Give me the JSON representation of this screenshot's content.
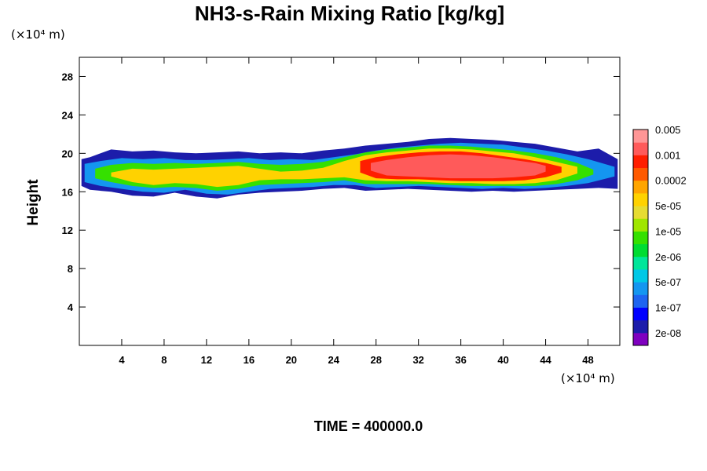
{
  "chart_data": {
    "type": "contour",
    "title": "NH3-s-Rain Mixing Ratio [kg/kg]",
    "ylabel": "Height",
    "xlabel": "",
    "y_unit": "(×10⁴ m)",
    "x_unit": "(×10⁴ m)",
    "xlim": [
      0,
      51
    ],
    "ylim": [
      0,
      30
    ],
    "x_ticks": [
      4,
      8,
      12,
      16,
      20,
      24,
      28,
      32,
      36,
      40,
      44,
      48
    ],
    "y_ticks": [
      4,
      8,
      12,
      16,
      20,
      24,
      28
    ],
    "levels": [
      "2e-08",
      "1e-07",
      "5e-07",
      "2e-06",
      "1e-05",
      "5e-05",
      "0.0002",
      "0.001",
      "0.005"
    ],
    "colors": [
      "#7f00bf",
      "#1c1caa",
      "#0000ff",
      "#1e64f0",
      "#1496f0",
      "#00c8e6",
      "#00e69a",
      "#00dc32",
      "#35e000",
      "#a0e600",
      "#e6dc32",
      "#ffd200",
      "#ffa500",
      "#ff5a00",
      "#ff1e00",
      "#ff5a5a",
      "#ff9696"
    ],
    "bands": [
      {
        "level": "2e-08",
        "x": [
          0.2,
          1,
          3,
          5,
          7,
          9,
          11,
          13,
          15,
          17,
          19,
          21,
          23,
          25,
          27,
          29,
          31,
          33,
          35,
          37,
          39,
          41,
          43,
          45,
          47,
          49,
          50.8
        ],
        "top": [
          19.4,
          19.6,
          20.4,
          20.2,
          20.3,
          20.1,
          20.0,
          20.1,
          20.2,
          20.0,
          20.1,
          20.0,
          20.3,
          20.5,
          20.8,
          21.0,
          21.2,
          21.5,
          21.6,
          21.5,
          21.4,
          21.2,
          21.0,
          20.6,
          20.2,
          20.5,
          19.4
        ],
        "bottom": [
          16.6,
          16.2,
          16.0,
          15.6,
          15.5,
          15.9,
          15.5,
          15.3,
          15.7,
          15.9,
          16.0,
          16.1,
          16.3,
          16.4,
          16.1,
          16.2,
          16.3,
          16.2,
          16.1,
          16.0,
          16.1,
          16.0,
          16.1,
          16.2,
          16.3,
          16.4,
          16.3
        ]
      },
      {
        "level": "5e-07",
        "x": [
          0.5,
          2,
          4,
          6,
          8,
          10,
          12,
          14,
          16,
          18,
          20,
          22,
          24,
          26,
          28,
          30,
          32,
          34,
          36,
          38,
          40,
          42,
          44,
          46,
          48,
          50.5
        ],
        "top": [
          18.9,
          19.2,
          19.5,
          19.4,
          19.5,
          19.3,
          19.3,
          19.4,
          19.5,
          19.3,
          19.4,
          19.3,
          19.6,
          19.9,
          20.3,
          20.6,
          20.8,
          21.0,
          21.1,
          21.0,
          20.9,
          20.6,
          20.3,
          19.9,
          19.4,
          18.6
        ],
        "bottom": [
          17.0,
          16.6,
          16.3,
          16.0,
          15.9,
          16.2,
          15.8,
          15.7,
          16.0,
          16.3,
          16.4,
          16.5,
          16.7,
          16.7,
          16.4,
          16.5,
          16.6,
          16.5,
          16.4,
          16.3,
          16.4,
          16.3,
          16.4,
          16.6,
          16.9,
          17.6
        ]
      },
      {
        "level": "1e-05",
        "x": [
          1.5,
          3,
          5,
          7,
          9,
          11,
          13,
          15,
          17,
          19,
          21,
          23,
          25,
          27,
          29,
          31,
          33,
          35,
          37,
          39,
          41,
          43,
          45,
          47,
          48.5
        ],
        "top": [
          18.4,
          18.8,
          19.0,
          18.9,
          19.0,
          18.9,
          19.0,
          19.1,
          18.9,
          18.8,
          18.9,
          19.1,
          19.6,
          20.1,
          20.4,
          20.6,
          20.8,
          20.8,
          20.7,
          20.5,
          20.3,
          20.0,
          19.6,
          19.0,
          18.3
        ],
        "bottom": [
          17.4,
          17.0,
          16.6,
          16.4,
          16.5,
          16.4,
          16.1,
          16.3,
          16.7,
          16.8,
          16.9,
          17.0,
          17.2,
          16.8,
          16.8,
          16.8,
          16.8,
          16.7,
          16.6,
          16.6,
          16.6,
          16.6,
          16.8,
          17.2,
          17.8
        ]
      },
      {
        "level": "0.0002",
        "x": [
          3,
          5,
          7,
          9,
          11,
          13,
          15,
          17,
          19,
          21,
          23,
          25,
          27,
          29,
          31,
          33,
          35,
          37,
          39,
          41,
          43,
          45,
          47
        ],
        "top": [
          18.0,
          18.4,
          18.3,
          18.4,
          18.5,
          18.6,
          18.7,
          18.4,
          18.1,
          18.2,
          18.5,
          19.2,
          19.8,
          20.1,
          20.3,
          20.5,
          20.5,
          20.4,
          20.2,
          20.0,
          19.6,
          19.1,
          18.6
        ],
        "bottom": [
          17.6,
          17.0,
          16.7,
          16.9,
          16.8,
          16.5,
          16.7,
          17.2,
          17.3,
          17.3,
          17.4,
          17.5,
          17.2,
          17.1,
          17.1,
          17.0,
          16.9,
          16.9,
          16.8,
          16.8,
          16.9,
          17.2,
          17.9
        ]
      },
      {
        "level": "0.001",
        "x": [
          26.5,
          28,
          30,
          32,
          34,
          36,
          38,
          40,
          42,
          44,
          45.5
        ],
        "top": [
          19.2,
          19.6,
          19.9,
          20.1,
          20.2,
          20.2,
          20.0,
          19.7,
          19.4,
          19.0,
          18.6
        ],
        "bottom": [
          18.0,
          17.4,
          17.3,
          17.3,
          17.2,
          17.1,
          17.1,
          17.1,
          17.2,
          17.5,
          18.0
        ]
      },
      {
        "level": "0.005",
        "x": [
          27.5,
          29,
          31,
          33,
          35,
          37,
          39,
          41,
          43,
          44
        ],
        "top": [
          19.0,
          19.3,
          19.6,
          19.8,
          19.9,
          19.8,
          19.6,
          19.3,
          19.0,
          18.7
        ],
        "bottom": [
          18.2,
          17.7,
          17.6,
          17.5,
          17.4,
          17.4,
          17.4,
          17.5,
          17.7,
          18.1
        ]
      }
    ]
  },
  "footer": {
    "time_label": "TIME = 400000.0"
  }
}
